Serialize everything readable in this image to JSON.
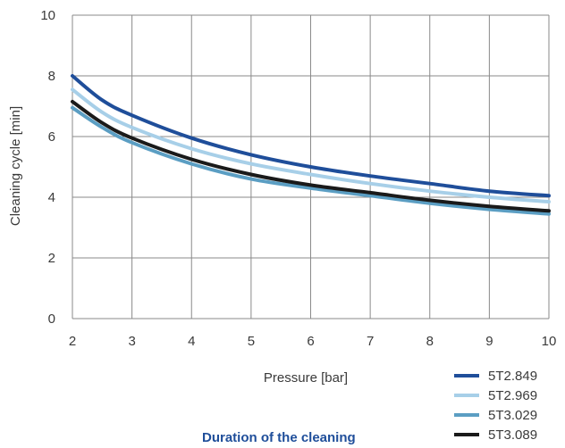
{
  "chart_data": {
    "type": "line",
    "title": "Duration of the cleaning",
    "xlabel": "Pressure [bar]",
    "ylabel": "Cleaning cycle [min]",
    "xlim": [
      2,
      10
    ],
    "ylim": [
      0,
      10
    ],
    "xticks": [
      2,
      3,
      4,
      5,
      6,
      7,
      8,
      9,
      10
    ],
    "yticks": [
      0,
      2,
      4,
      6,
      8,
      10
    ],
    "grid": true,
    "legend_position": "bottom-right",
    "series": [
      {
        "name": "5T2.849",
        "color": "#1f4e9a",
        "x": [
          2,
          2.5,
          3,
          4,
          5,
          6,
          7,
          8,
          9,
          10
        ],
        "y": [
          8.0,
          7.2,
          6.7,
          5.95,
          5.4,
          5.0,
          4.7,
          4.45,
          4.2,
          4.05
        ]
      },
      {
        "name": "5T2.969",
        "color": "#a7cfe8",
        "x": [
          2,
          2.5,
          3,
          4,
          5,
          6,
          7,
          8,
          9,
          10
        ],
        "y": [
          7.55,
          6.8,
          6.3,
          5.6,
          5.1,
          4.75,
          4.45,
          4.2,
          4.0,
          3.85
        ]
      },
      {
        "name": "5T3.029",
        "color": "#5b9ec3",
        "x": [
          2,
          2.5,
          3,
          4,
          5,
          6,
          7,
          8,
          9,
          10
        ],
        "y": [
          6.95,
          6.3,
          5.8,
          5.1,
          4.6,
          4.3,
          4.05,
          3.8,
          3.6,
          3.45
        ]
      },
      {
        "name": "5T3.089",
        "color": "#1a1a1a",
        "x": [
          2,
          2.5,
          3,
          4,
          5,
          6,
          7,
          8,
          9,
          10
        ],
        "y": [
          7.15,
          6.45,
          5.95,
          5.25,
          4.75,
          4.4,
          4.15,
          3.9,
          3.7,
          3.55
        ]
      }
    ]
  }
}
